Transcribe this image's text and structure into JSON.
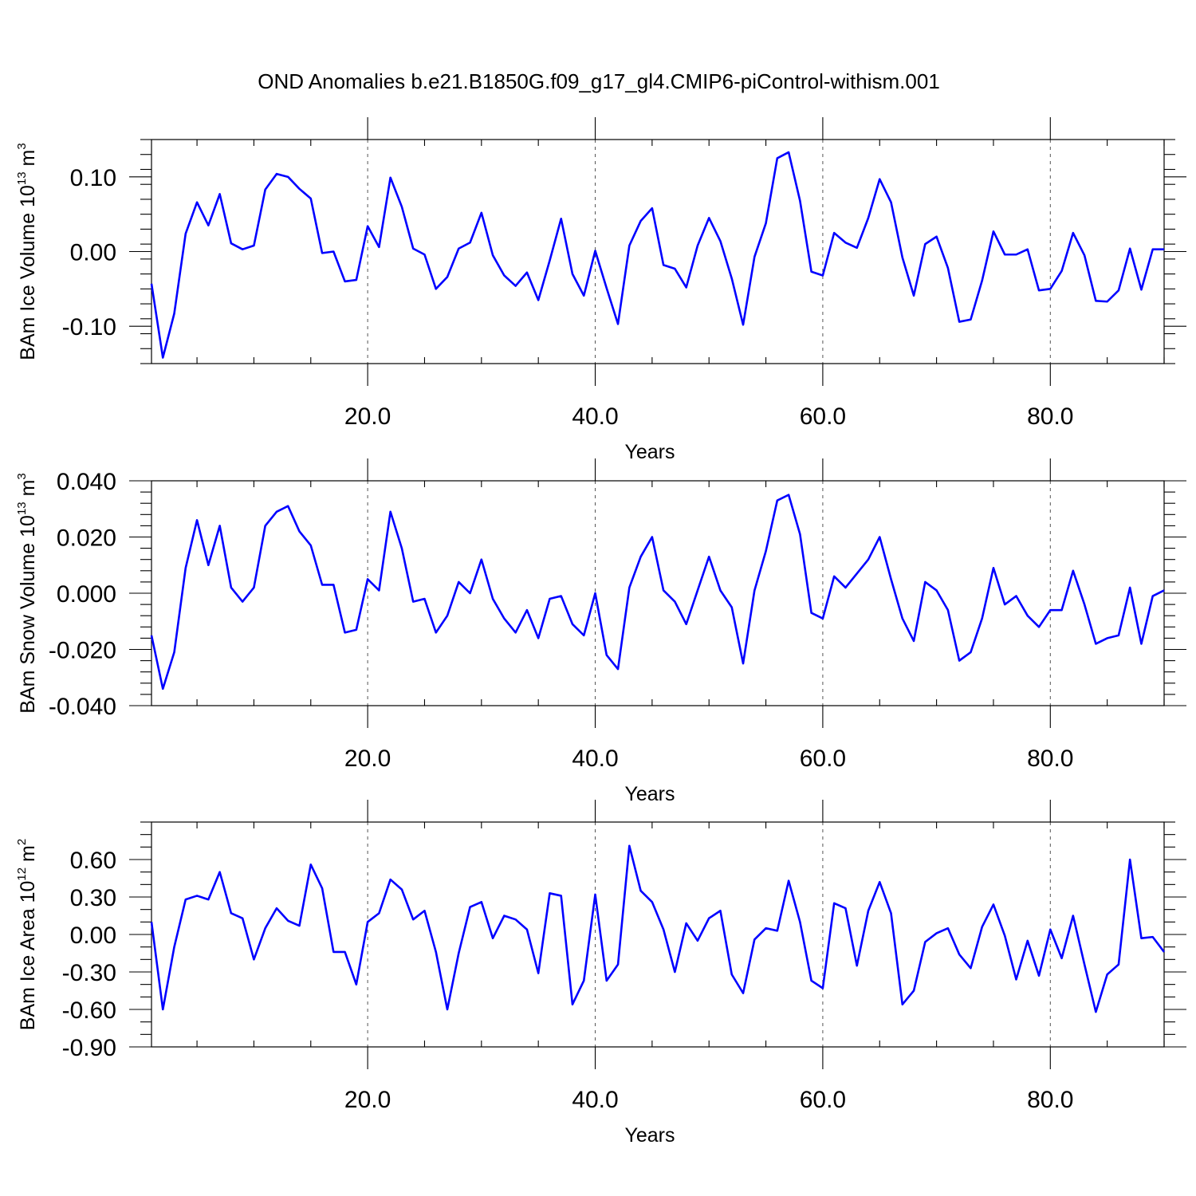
{
  "title": "OND Anomalies b.e21.B1850G.f09_g17_gl4.CMIP6-piControl-withism.001",
  "colors": {
    "series": "#0000ff",
    "grid": "#555555",
    "axes": "#000000"
  },
  "chart_data": [
    {
      "type": "line",
      "ylabel": "BAm Ice Volume 10",
      "ylabel_exp": "13",
      "ylabel_unit": "m",
      "ylabel_unit_exp": "3",
      "xlabel": "Years",
      "xlim": [
        1,
        90
      ],
      "ylim": [
        -0.15,
        0.15
      ],
      "xticks": [
        20,
        40,
        60,
        80
      ],
      "xtick_labels": [
        "20.0",
        "40.0",
        "60.0",
        "80.0"
      ],
      "yticks": [
        -0.1,
        0.0,
        0.1
      ],
      "ytick_labels": [
        "-0.10",
        "0.00",
        "0.10"
      ],
      "x_minor_step": 5,
      "y_minor_step": 0.02,
      "grid": "vertical dashed at major x ticks",
      "series": [
        {
          "color": "#0000ff",
          "x": [
            1,
            2,
            3,
            4,
            5,
            6,
            7,
            8,
            9,
            10,
            11,
            12,
            13,
            14,
            15,
            16,
            17,
            18,
            19,
            20,
            21,
            22,
            23,
            24,
            25,
            26,
            27,
            28,
            29,
            30,
            31,
            32,
            33,
            34,
            35,
            36,
            37,
            38,
            39,
            40,
            41,
            42,
            43,
            44,
            45,
            46,
            47,
            48,
            49,
            50,
            51,
            52,
            53,
            54,
            55,
            56,
            57,
            58,
            59,
            60,
            61,
            62,
            63,
            64,
            65,
            66,
            67,
            68,
            69,
            70,
            71,
            72,
            73,
            74,
            75,
            76,
            77,
            78,
            79,
            80,
            81,
            82,
            83,
            84,
            85,
            86,
            87,
            88,
            89,
            90
          ],
          "values": [
            -0.043,
            -0.142,
            -0.083,
            0.024,
            0.066,
            0.035,
            0.077,
            0.011,
            0.003,
            0.008,
            0.083,
            0.104,
            0.1,
            0.084,
            0.071,
            -0.002,
            0.0,
            -0.04,
            -0.038,
            0.034,
            0.006,
            0.099,
            0.06,
            0.004,
            -0.004,
            -0.05,
            -0.034,
            0.004,
            0.012,
            0.052,
            -0.005,
            -0.032,
            -0.046,
            -0.028,
            -0.065,
            -0.012,
            0.044,
            -0.03,
            -0.059,
            0.001,
            -0.049,
            -0.097,
            0.008,
            0.041,
            0.058,
            -0.018,
            -0.023,
            -0.048,
            0.008,
            0.045,
            0.014,
            -0.036,
            -0.098,
            -0.007,
            0.038,
            0.125,
            0.133,
            0.068,
            -0.027,
            -0.032,
            0.025,
            0.012,
            0.005,
            0.045,
            0.097,
            0.066,
            -0.008,
            -0.059,
            0.01,
            0.02,
            -0.022,
            -0.094,
            -0.091,
            -0.039,
            0.027,
            -0.004,
            -0.004,
            0.003,
            -0.052,
            -0.05,
            -0.026,
            0.025,
            -0.005,
            -0.066,
            -0.067,
            -0.052,
            0.004,
            -0.051,
            0.003,
            0.003
          ]
        }
      ]
    },
    {
      "type": "line",
      "ylabel": "BAm Snow Volume 10",
      "ylabel_exp": "13",
      "ylabel_unit": "m",
      "ylabel_unit_exp": "3",
      "xlabel": "Years",
      "xlim": [
        1,
        90
      ],
      "ylim": [
        -0.04,
        0.04
      ],
      "xticks": [
        20,
        40,
        60,
        80
      ],
      "xtick_labels": [
        "20.0",
        "40.0",
        "60.0",
        "80.0"
      ],
      "yticks": [
        -0.04,
        -0.02,
        0.0,
        0.02,
        0.04
      ],
      "ytick_labels": [
        "-0.040",
        "-0.020",
        "0.000",
        "0.020",
        "0.040"
      ],
      "x_minor_step": 5,
      "y_minor_step": 0.004,
      "grid": "vertical dashed at major x ticks",
      "series": [
        {
          "color": "#0000ff",
          "x": [
            1,
            2,
            3,
            4,
            5,
            6,
            7,
            8,
            9,
            10,
            11,
            12,
            13,
            14,
            15,
            16,
            17,
            18,
            19,
            20,
            21,
            22,
            23,
            24,
            25,
            26,
            27,
            28,
            29,
            30,
            31,
            32,
            33,
            34,
            35,
            36,
            37,
            38,
            39,
            40,
            41,
            42,
            43,
            44,
            45,
            46,
            47,
            48,
            49,
            50,
            51,
            52,
            53,
            54,
            55,
            56,
            57,
            58,
            59,
            60,
            61,
            62,
            63,
            64,
            65,
            66,
            67,
            68,
            69,
            70,
            71,
            72,
            73,
            74,
            75,
            76,
            77,
            78,
            79,
            80,
            81,
            82,
            83,
            84,
            85,
            86,
            87,
            88,
            89,
            90
          ],
          "values": [
            -0.015,
            -0.034,
            -0.021,
            0.009,
            0.026,
            0.01,
            0.024,
            0.002,
            -0.003,
            0.002,
            0.024,
            0.029,
            0.031,
            0.022,
            0.017,
            0.003,
            0.003,
            -0.014,
            -0.013,
            0.005,
            0.001,
            0.029,
            0.016,
            -0.003,
            -0.002,
            -0.014,
            -0.008,
            0.004,
            0.0,
            0.012,
            -0.002,
            -0.009,
            -0.014,
            -0.006,
            -0.016,
            -0.002,
            -0.001,
            -0.011,
            -0.015,
            0.0,
            -0.022,
            -0.027,
            0.002,
            0.013,
            0.02,
            0.001,
            -0.003,
            -0.011,
            0.001,
            0.013,
            0.001,
            -0.005,
            -0.025,
            0.001,
            0.015,
            0.033,
            0.035,
            0.021,
            -0.007,
            -0.009,
            0.006,
            0.002,
            0.007,
            0.012,
            0.02,
            0.005,
            -0.009,
            -0.017,
            0.004,
            0.001,
            -0.006,
            -0.024,
            -0.021,
            -0.009,
            0.009,
            -0.004,
            -0.001,
            -0.008,
            -0.012,
            -0.006,
            -0.006,
            0.008,
            -0.004,
            -0.018,
            -0.016,
            -0.015,
            0.002,
            -0.018,
            -0.001,
            0.001
          ]
        }
      ]
    },
    {
      "type": "line",
      "ylabel": "BAm Ice Area 10",
      "ylabel_exp": "12",
      "ylabel_unit": "m",
      "ylabel_unit_exp": "2",
      "xlabel": "Years",
      "xlim": [
        1,
        90
      ],
      "ylim": [
        -0.9,
        0.9
      ],
      "xticks": [
        20,
        40,
        60,
        80
      ],
      "xtick_labels": [
        "20.0",
        "40.0",
        "60.0",
        "80.0"
      ],
      "yticks": [
        -0.9,
        -0.6,
        -0.3,
        0.0,
        0.3,
        0.6
      ],
      "ytick_labels": [
        "-0.90",
        "-0.60",
        "-0.30",
        "0.00",
        "0.30",
        "0.60"
      ],
      "x_minor_step": 5,
      "y_minor_step": 0.1,
      "grid": "vertical dashed at major x ticks",
      "series": [
        {
          "color": "#0000ff",
          "x": [
            1,
            2,
            3,
            4,
            5,
            6,
            7,
            8,
            9,
            10,
            11,
            12,
            13,
            14,
            15,
            16,
            17,
            18,
            19,
            20,
            21,
            22,
            23,
            24,
            25,
            26,
            27,
            28,
            29,
            30,
            31,
            32,
            33,
            34,
            35,
            36,
            37,
            38,
            39,
            40,
            41,
            42,
            43,
            44,
            45,
            46,
            47,
            48,
            49,
            50,
            51,
            52,
            53,
            54,
            55,
            56,
            57,
            58,
            59,
            60,
            61,
            62,
            63,
            64,
            65,
            66,
            67,
            68,
            69,
            70,
            71,
            72,
            73,
            74,
            75,
            76,
            77,
            78,
            79,
            80,
            81,
            82,
            83,
            84,
            85,
            86,
            87,
            88,
            89,
            90
          ],
          "values": [
            0.1,
            -0.6,
            -0.1,
            0.28,
            0.31,
            0.28,
            0.5,
            0.17,
            0.13,
            -0.2,
            0.05,
            0.21,
            0.11,
            0.07,
            0.56,
            0.37,
            -0.14,
            -0.14,
            -0.4,
            0.1,
            0.17,
            0.44,
            0.36,
            0.12,
            0.19,
            -0.14,
            -0.6,
            -0.15,
            0.22,
            0.26,
            -0.03,
            0.15,
            0.12,
            0.04,
            -0.31,
            0.33,
            0.31,
            -0.56,
            -0.37,
            0.32,
            -0.37,
            -0.24,
            0.71,
            0.35,
            0.26,
            0.04,
            -0.3,
            0.09,
            -0.05,
            0.13,
            0.19,
            -0.32,
            -0.47,
            -0.04,
            0.05,
            0.03,
            0.43,
            0.1,
            -0.37,
            -0.43,
            0.25,
            0.21,
            -0.25,
            0.19,
            0.42,
            0.17,
            -0.56,
            -0.45,
            -0.06,
            0.01,
            0.05,
            -0.16,
            -0.27,
            0.06,
            0.24,
            -0.01,
            -0.36,
            -0.05,
            -0.33,
            0.04,
            -0.19,
            0.15,
            -0.24,
            -0.62,
            -0.32,
            -0.24,
            0.6,
            -0.03,
            -0.02,
            -0.14
          ]
        }
      ]
    }
  ]
}
